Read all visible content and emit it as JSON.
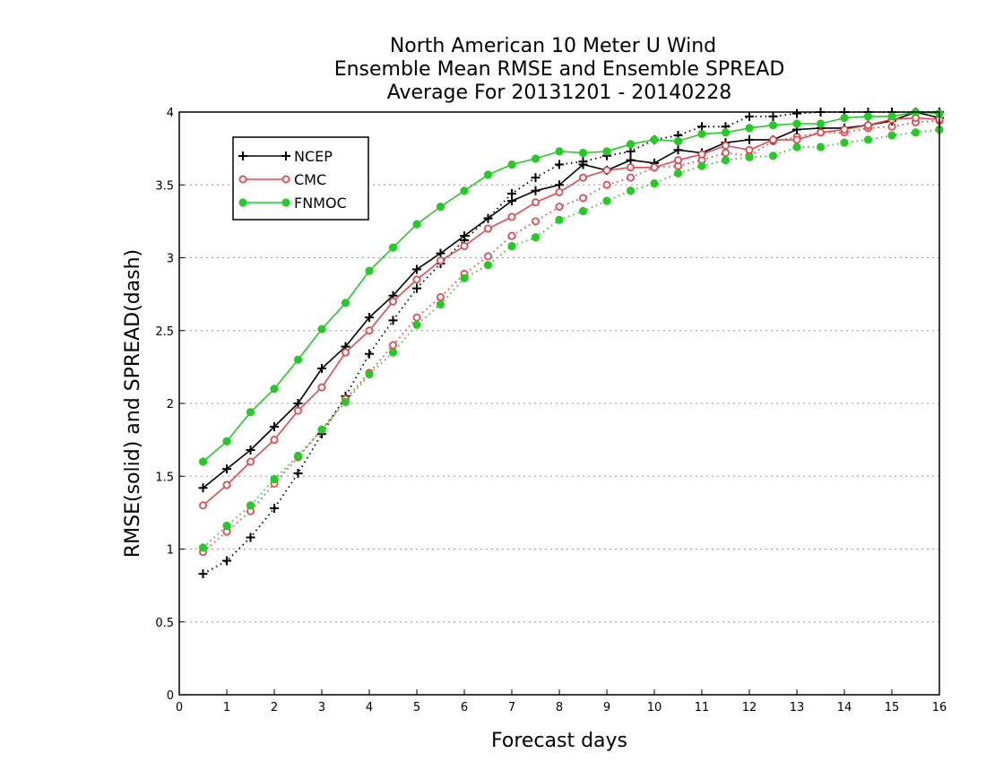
{
  "chart_data": {
    "type": "line",
    "title": [
      "North American 10 Meter U Wind",
      "Ensemble Mean RMSE and Ensemble SPREAD",
      "Average For 20131201 - 20140228"
    ],
    "xlabel": "Forecast days",
    "ylabel": "RMSE(solid) and SPREAD(dash)",
    "xlim": [
      0,
      16
    ],
    "ylim": [
      0,
      4
    ],
    "xticks": [
      "0",
      "1",
      "2",
      "3",
      "4",
      "5",
      "6",
      "7",
      "8",
      "9",
      "10",
      "11",
      "12",
      "13",
      "14",
      "15",
      "16"
    ],
    "yticks": [
      "0",
      "0.5",
      "1",
      "1.5",
      "2",
      "2.5",
      "3",
      "3.5",
      "4"
    ],
    "grid": "horizontal-dotted",
    "legend_position": "top-left",
    "x": [
      0.5,
      1,
      1.5,
      2,
      2.5,
      3,
      3.5,
      4,
      4.5,
      5,
      5.5,
      6,
      6.5,
      7,
      7.5,
      8,
      8.5,
      9,
      9.5,
      10,
      10.5,
      11,
      11.5,
      12,
      12.5,
      13,
      13.5,
      14,
      14.5,
      15,
      15.5,
      16
    ],
    "series": [
      {
        "name": "NCEP",
        "metric": "RMSE",
        "style": "solid",
        "marker": "plus",
        "color": "#000000",
        "values": [
          1.42,
          1.55,
          1.68,
          1.84,
          2.0,
          2.24,
          2.39,
          2.59,
          2.74,
          2.92,
          3.03,
          3.15,
          3.27,
          3.39,
          3.46,
          3.5,
          3.64,
          3.6,
          3.67,
          3.65,
          3.74,
          3.72,
          3.79,
          3.81,
          3.81,
          3.88,
          3.89,
          3.89,
          3.91,
          3.94,
          4.0,
          3.96
        ]
      },
      {
        "name": "CMC",
        "metric": "RMSE",
        "style": "solid",
        "marker": "open-circle",
        "color": "#e8474e",
        "values": [
          1.3,
          1.44,
          1.6,
          1.75,
          1.95,
          2.11,
          2.35,
          2.5,
          2.7,
          2.85,
          2.98,
          3.08,
          3.2,
          3.28,
          3.38,
          3.45,
          3.55,
          3.6,
          3.62,
          3.62,
          3.67,
          3.71,
          3.77,
          3.74,
          3.81,
          3.81,
          3.86,
          3.88,
          3.91,
          3.95,
          3.96,
          3.95
        ]
      },
      {
        "name": "FNMOC",
        "metric": "RMSE",
        "style": "solid",
        "marker": "filled-circle",
        "color": "#22cc22",
        "values": [
          1.6,
          1.74,
          1.94,
          2.1,
          2.3,
          2.51,
          2.69,
          2.91,
          3.07,
          3.23,
          3.35,
          3.46,
          3.57,
          3.64,
          3.68,
          3.73,
          3.72,
          3.73,
          3.78,
          3.81,
          3.8,
          3.85,
          3.86,
          3.89,
          3.91,
          3.92,
          3.92,
          3.96,
          3.97,
          3.97,
          4.0,
          3.99
        ]
      },
      {
        "name": "NCEP",
        "metric": "SPREAD",
        "style": "dash",
        "marker": "plus",
        "color": "#000000",
        "values": [
          0.83,
          0.92,
          1.08,
          1.28,
          1.52,
          1.79,
          2.05,
          2.34,
          2.57,
          2.79,
          2.96,
          3.12,
          3.27,
          3.44,
          3.55,
          3.64,
          3.66,
          3.7,
          3.73,
          3.81,
          3.84,
          3.9,
          3.9,
          3.97,
          3.97,
          3.99,
          4.0,
          4.0,
          4.0,
          4.0,
          4.0,
          4.0
        ]
      },
      {
        "name": "CMC",
        "metric": "SPREAD",
        "style": "dash",
        "marker": "open-circle",
        "color": "#e8474e",
        "values": [
          0.98,
          1.12,
          1.26,
          1.45,
          1.63,
          1.82,
          2.03,
          2.21,
          2.4,
          2.59,
          2.73,
          2.89,
          3.01,
          3.15,
          3.25,
          3.35,
          3.41,
          3.5,
          3.55,
          3.62,
          3.63,
          3.67,
          3.72,
          3.7,
          3.8,
          3.83,
          3.86,
          3.86,
          3.89,
          3.9,
          3.93,
          3.94
        ]
      },
      {
        "name": "FNMOC",
        "metric": "SPREAD",
        "style": "dash",
        "marker": "filled-circle",
        "color": "#22cc22",
        "values": [
          1.01,
          1.16,
          1.3,
          1.48,
          1.64,
          1.82,
          2.01,
          2.2,
          2.35,
          2.54,
          2.68,
          2.86,
          2.95,
          3.08,
          3.14,
          3.26,
          3.32,
          3.39,
          3.46,
          3.51,
          3.58,
          3.63,
          3.67,
          3.69,
          3.7,
          3.76,
          3.76,
          3.79,
          3.81,
          3.84,
          3.86,
          3.88
        ]
      }
    ],
    "legend": [
      {
        "label": "NCEP",
        "marker": "plus",
        "color": "#000000"
      },
      {
        "label": "CMC",
        "marker": "open-circle",
        "color": "#e8474e"
      },
      {
        "label": "FNMOC",
        "marker": "filled-circle",
        "color": "#22cc22"
      }
    ]
  }
}
